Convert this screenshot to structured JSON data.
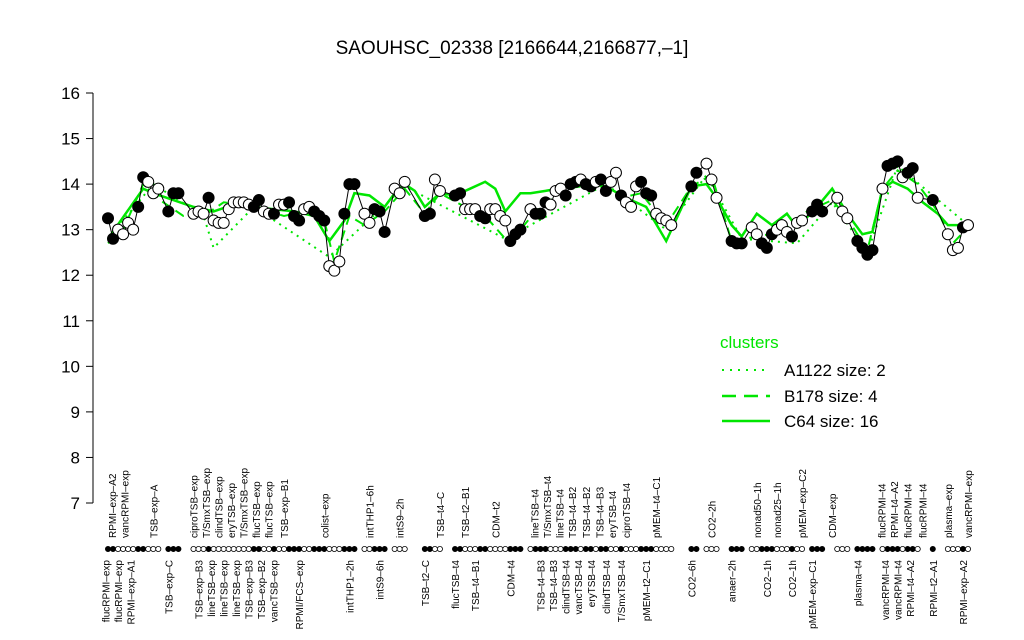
{
  "chart_data": {
    "type": "line",
    "title": "SAOUHSC_02338 [2166644,2166877,–1]",
    "xlabel": "",
    "ylabel": "",
    "xlim": [
      1,
      172
    ],
    "ylim": [
      7,
      16
    ],
    "yticks": [
      7,
      8,
      9,
      10,
      11,
      12,
      13,
      14,
      15,
      16
    ],
    "grid": false,
    "points": {
      "x": [
        1,
        2,
        3,
        4,
        5,
        6,
        7,
        8,
        9,
        10,
        11,
        13,
        14,
        15,
        18,
        19,
        20,
        21,
        22,
        23,
        24,
        25,
        26,
        27,
        28,
        29,
        30,
        31,
        32,
        33,
        34,
        35,
        36,
        37,
        38,
        39,
        40,
        41,
        42,
        43,
        44,
        45,
        46,
        47,
        48,
        49,
        50,
        52,
        53,
        54,
        55,
        56,
        58,
        59,
        60,
        64,
        65,
        66,
        67,
        70,
        71,
        72,
        73,
        74,
        75,
        76,
        77,
        78,
        79,
        80,
        81,
        82,
        83,
        85,
        86,
        87,
        88,
        89,
        90,
        91,
        92,
        93,
        94,
        95,
        96,
        97,
        98,
        99,
        100,
        101,
        102,
        103,
        104,
        105,
        106,
        107,
        108,
        109,
        110,
        111,
        112,
        113,
        117,
        118,
        120,
        121,
        122,
        125,
        126,
        127,
        129,
        130,
        131,
        132,
        133,
        134,
        135,
        136,
        137,
        138,
        139,
        141,
        142,
        143,
        146,
        147,
        148,
        150,
        151,
        152,
        153,
        155,
        156,
        157,
        158,
        159,
        160,
        161,
        162,
        165,
        168,
        169,
        170,
        171,
        172
      ],
      "y": [
        13.25,
        12.8,
        13.0,
        12.9,
        13.15,
        13.0,
        13.5,
        14.15,
        14.05,
        13.8,
        13.9,
        13.4,
        13.8,
        13.8,
        13.35,
        13.4,
        13.35,
        13.7,
        13.2,
        13.15,
        13.15,
        13.45,
        13.6,
        13.6,
        13.6,
        13.55,
        13.5,
        13.65,
        13.4,
        13.35,
        13.35,
        13.55,
        13.55,
        13.6,
        13.3,
        13.2,
        13.45,
        13.5,
        13.4,
        13.3,
        13.2,
        12.2,
        12.1,
        12.3,
        13.35,
        14.0,
        14.0,
        13.35,
        13.15,
        13.45,
        13.4,
        12.95,
        13.9,
        13.8,
        14.05,
        13.3,
        13.35,
        14.1,
        13.85,
        13.75,
        13.8,
        13.45,
        13.45,
        13.45,
        13.3,
        13.25,
        13.45,
        13.45,
        13.3,
        13.2,
        12.75,
        12.9,
        13.0,
        13.45,
        13.35,
        13.35,
        13.6,
        13.55,
        13.85,
        13.9,
        13.75,
        14.0,
        14.05,
        14.1,
        14.0,
        13.95,
        14.05,
        14.1,
        13.85,
        14.05,
        14.25,
        13.75,
        13.6,
        13.5,
        13.95,
        14.05,
        13.8,
        13.75,
        13.35,
        13.25,
        13.2,
        13.1,
        13.95,
        14.25,
        14.45,
        14.1,
        13.7,
        12.75,
        12.7,
        12.7,
        13.05,
        12.9,
        12.7,
        12.6,
        12.9,
        13.0,
        13.1,
        12.95,
        12.85,
        13.15,
        13.2,
        13.4,
        13.55,
        13.4,
        13.7,
        13.4,
        13.25,
        12.75,
        12.6,
        12.45,
        12.55,
        13.9,
        14.4,
        14.45,
        14.5,
        14.15,
        14.25,
        14.35,
        13.7,
        13.65,
        12.9,
        12.55,
        12.6,
        13.05,
        13.1
      ],
      "filled": [
        1,
        1,
        0,
        0,
        0,
        0,
        1,
        1,
        0,
        0,
        0,
        1,
        1,
        1,
        0,
        0,
        0,
        1,
        0,
        0,
        0,
        0,
        0,
        0,
        0,
        0,
        1,
        1,
        0,
        0,
        1,
        0,
        0,
        1,
        1,
        1,
        0,
        0,
        1,
        1,
        1,
        0,
        0,
        0,
        1,
        1,
        1,
        0,
        0,
        1,
        1,
        1,
        0,
        0,
        0,
        1,
        1,
        0,
        0,
        1,
        1,
        0,
        0,
        0,
        1,
        1,
        0,
        0,
        0,
        0,
        1,
        1,
        1,
        0,
        1,
        1,
        1,
        0,
        0,
        0,
        1,
        1,
        1,
        0,
        1,
        1,
        0,
        1,
        1,
        0,
        0,
        1,
        0,
        0,
        0,
        1,
        1,
        1,
        0,
        0,
        0,
        0,
        1,
        1,
        0,
        0,
        0,
        1,
        1,
        1,
        0,
        0,
        1,
        1,
        1,
        0,
        0,
        0,
        1,
        0,
        0,
        1,
        1,
        1,
        0,
        0,
        0,
        1,
        1,
        1,
        1,
        0,
        1,
        1,
        1,
        0,
        1,
        1,
        0,
        1,
        0,
        0,
        0,
        1,
        0
      ]
    },
    "series": [
      {
        "name": "C64 size: 16",
        "style": "solid",
        "x": [
          1,
          8,
          10,
          14,
          18,
          22,
          26,
          30,
          34,
          38,
          42,
          45,
          48,
          50,
          53,
          56,
          58,
          60,
          62,
          64,
          67,
          70,
          73,
          76,
          78,
          80,
          83,
          85,
          88,
          93,
          97,
          100,
          104,
          108,
          112,
          117,
          120,
          122,
          125,
          127,
          130,
          133,
          136,
          138,
          142,
          145,
          148,
          151,
          153,
          155,
          157,
          160,
          163,
          166,
          168,
          172
        ],
        "y": [
          12.8,
          13.9,
          13.8,
          13.65,
          13.5,
          13.4,
          13.55,
          13.5,
          13.45,
          13.4,
          13.3,
          12.75,
          13.2,
          13.8,
          13.75,
          13.5,
          13.8,
          14.0,
          13.85,
          13.5,
          13.8,
          13.75,
          13.9,
          14.05,
          13.9,
          13.4,
          13.8,
          13.8,
          13.85,
          13.95,
          14.0,
          13.95,
          13.7,
          13.5,
          12.75,
          13.95,
          14.0,
          13.7,
          13.1,
          12.85,
          13.35,
          13.1,
          13.35,
          13.05,
          13.5,
          13.9,
          13.35,
          12.9,
          12.95,
          13.9,
          14.05,
          13.9,
          13.6,
          13.35,
          13.1,
          13.1
        ]
      },
      {
        "name": "B178 size: 4",
        "style": "dashed",
        "x": [
          1,
          4,
          8,
          12,
          16,
          20,
          24,
          30,
          36,
          40,
          44,
          46,
          49,
          52,
          56,
          60,
          64,
          67,
          72,
          76,
          80,
          83,
          86,
          92,
          98,
          103,
          107,
          112,
          117,
          121,
          125,
          130,
          135,
          140,
          145,
          148,
          152,
          155,
          158,
          162,
          166,
          169,
          172
        ],
        "y": [
          12.7,
          13.0,
          14.0,
          13.6,
          13.3,
          13.3,
          13.6,
          13.5,
          13.3,
          13.4,
          13.2,
          12.3,
          13.3,
          13.1,
          13.4,
          13.9,
          13.35,
          13.8,
          13.5,
          13.3,
          12.8,
          13.0,
          13.4,
          13.9,
          14.0,
          13.7,
          13.8,
          13.1,
          13.95,
          14.2,
          12.75,
          12.85,
          12.95,
          13.4,
          13.65,
          13.25,
          12.55,
          13.9,
          14.3,
          14.0,
          13.4,
          12.7,
          13.05
        ]
      },
      {
        "name": "A1122 size: 2",
        "style": "dotted",
        "x": [
          1,
          10,
          20,
          22,
          30,
          45,
          60,
          80,
          100,
          112,
          120,
          127,
          138,
          145,
          152,
          158,
          172
        ],
        "y": [
          12.8,
          14.0,
          13.3,
          12.6,
          13.5,
          12.4,
          13.95,
          12.8,
          14.0,
          13.0,
          14.2,
          12.8,
          12.7,
          13.6,
          12.5,
          14.4,
          13.1
        ]
      }
    ],
    "legend": {
      "title": "clusters",
      "position": "right",
      "color": "#00e600",
      "entries": [
        "A1122 size: 2",
        "B178 size: 4",
        "C64 size: 16"
      ]
    },
    "labels_top": [
      {
        "x": 2,
        "text": "RPMI–exp–A2"
      },
      {
        "x": 4,
        "text": "vancRPMI–exp"
      },
      {
        "x": 10,
        "text": "TSB–exp–A"
      },
      {
        "x": 18,
        "text": "ciproTSB–exp"
      },
      {
        "x": 21,
        "text": "T/SmxTSB–exp"
      },
      {
        "x": 23,
        "text": "clindTSB–exp"
      },
      {
        "x": 26,
        "text": "eryTSB–exp"
      },
      {
        "x": 28,
        "text": "T/SmxTSB–exp"
      },
      {
        "x": 30,
        "text": "flucTSB–exp"
      },
      {
        "x": 32,
        "text": "flucTSB–exp"
      },
      {
        "x": 36,
        "text": "TSB–exp–B1"
      },
      {
        "x": 44,
        "text": "colist–exp"
      },
      {
        "x": 53,
        "text": "intTHP1–6h"
      },
      {
        "x": 59,
        "text": "intS9–2h"
      },
      {
        "x": 67,
        "text": "TSB–t4–C"
      },
      {
        "x": 72,
        "text": "TSB–t2–B1"
      },
      {
        "x": 78,
        "text": "CDM–t2"
      },
      {
        "x": 86,
        "text": "lineTSB–t4"
      },
      {
        "x": 88,
        "text": "T/SmxTSB–t4"
      },
      {
        "x": 91,
        "text": "lineTSB–t4"
      },
      {
        "x": 93,
        "text": "TSB–t4–B2"
      },
      {
        "x": 96,
        "text": "TSB–t4–B2"
      },
      {
        "x": 99,
        "text": "TSB–t4–B3"
      },
      {
        "x": 101,
        "text": "eryTSB–t4"
      },
      {
        "x": 104,
        "text": "ciproTSB–t4"
      },
      {
        "x": 110,
        "text": "pMEM–t4–C1"
      },
      {
        "x": 121,
        "text": "CO2–2h"
      },
      {
        "x": 130,
        "text": "nonad50–1h"
      },
      {
        "x": 134,
        "text": "nonad25–1h"
      },
      {
        "x": 139,
        "text": "pMEM–exp–C2"
      },
      {
        "x": 145,
        "text": "CDM–exp"
      },
      {
        "x": 155,
        "text": "flucRPMI–t4"
      },
      {
        "x": 157,
        "text": "RPMI–t4–A2"
      },
      {
        "x": 160,
        "text": "flucRPMI–t4"
      },
      {
        "x": 163,
        "text": "flucRPMI–t4"
      },
      {
        "x": 168,
        "text": "plasma–exp"
      },
      {
        "x": 172,
        "text": "vancRPMI–exp"
      }
    ],
    "labels_bottom": [
      {
        "x": 1,
        "text": "flucRPMI–exp"
      },
      {
        "x": 3,
        "text": "flucRPMI–exp"
      },
      {
        "x": 5,
        "text": "RPMI–exp–A1"
      },
      {
        "x": 13,
        "text": "TSB–exp–C"
      },
      {
        "x": 21,
        "text": "TSB–exp–B3"
      },
      {
        "x": 22,
        "text": "lineTSB–exp"
      },
      {
        "x": 25,
        "text": "lineTSB–exp"
      },
      {
        "x": 27,
        "text": "lineTSB–exp"
      },
      {
        "x": 28,
        "text": "TSB–exp–B3"
      },
      {
        "x": 30,
        "text": "TSB–exp–B2"
      },
      {
        "x": 32,
        "text": "vancTSB–exp"
      },
      {
        "x": 39,
        "text": "RPMI/FCS–exp"
      },
      {
        "x": 49,
        "text": "intTHP1–2h"
      },
      {
        "x": 55,
        "text": "intS9–6h"
      },
      {
        "x": 64,
        "text": "TSB–t2–C"
      },
      {
        "x": 70,
        "text": "flucTSB–t4"
      },
      {
        "x": 74,
        "text": "TSB–t4–B1"
      },
      {
        "x": 81,
        "text": "CDM–t4"
      },
      {
        "x": 87,
        "text": "TSB–t4–B3"
      },
      {
        "x": 90,
        "text": "TSB–t4–B3"
      },
      {
        "x": 92,
        "text": "clindTSB–t4"
      },
      {
        "x": 94,
        "text": "vancTSB–t4"
      },
      {
        "x": 97,
        "text": "eryTSB–t4"
      },
      {
        "x": 100,
        "text": "clindTSB–t4"
      },
      {
        "x": 103,
        "text": "T/SmxTSB–t4"
      },
      {
        "x": 108,
        "text": "pMEM–t2–C1"
      },
      {
        "x": 117,
        "text": "CO2–6h"
      },
      {
        "x": 125,
        "text": "anaer–2h"
      },
      {
        "x": 132,
        "text": "CO2–1h"
      },
      {
        "x": 137,
        "text": "CO2–1h"
      },
      {
        "x": 141,
        "text": "pMEM–exp–C1"
      },
      {
        "x": 150,
        "text": "plasma–t4"
      },
      {
        "x": 156,
        "text": "vancRPMI–t4"
      },
      {
        "x": 158,
        "text": "vancRPMI–t4"
      },
      {
        "x": 160,
        "text": "RPMI–t4–A2"
      },
      {
        "x": 165,
        "text": "RPMI–t2–A1"
      },
      {
        "x": 171,
        "text": "RPMI–exp–A2"
      }
    ]
  }
}
